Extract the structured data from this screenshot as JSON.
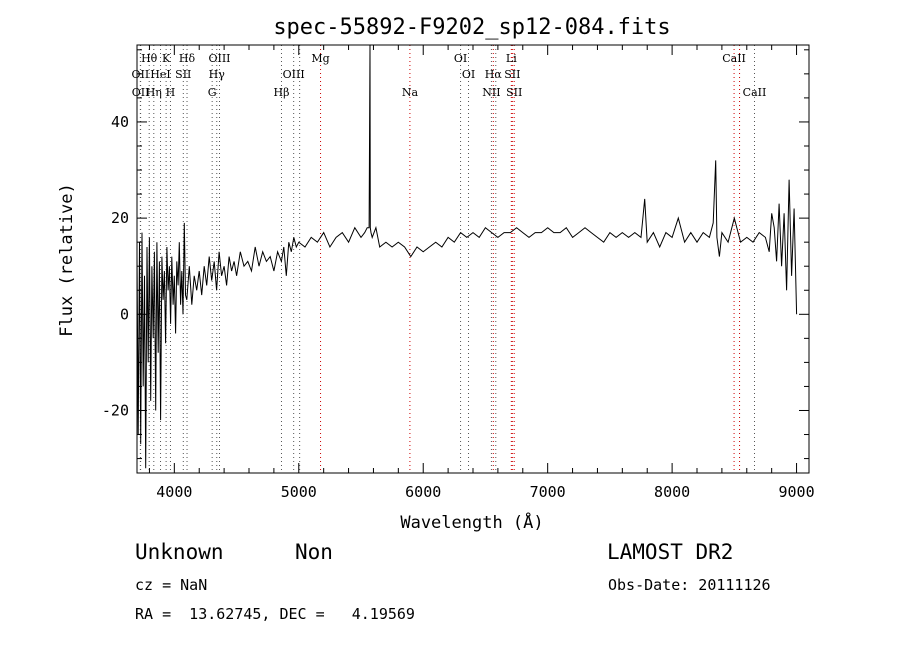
{
  "chart_data": {
    "type": "line",
    "title": "spec-55892-F9202_sp12-084.fits",
    "xlabel": "Wavelength (Å)",
    "ylabel": "Flux (relative)",
    "xlim": [
      3700,
      9100
    ],
    "ylim": [
      -33,
      56
    ],
    "xticks": [
      4000,
      5000,
      6000,
      7000,
      8000,
      9000
    ],
    "yticks": [
      -20,
      0,
      20,
      40
    ],
    "grid": false,
    "line_color": "#000000",
    "marker_color": "#cc0000",
    "series": [
      {
        "x": [
          3700,
          3710,
          3720,
          3730,
          3740,
          3750,
          3760,
          3770,
          3780,
          3790,
          3800,
          3810,
          3820,
          3830,
          3840,
          3850,
          3860,
          3870,
          3880,
          3890,
          3900,
          3910,
          3920,
          3930,
          3940,
          3950,
          3960,
          3970,
          3980,
          3990,
          4000,
          4010,
          4020,
          4030,
          4040,
          4050,
          4060,
          4070,
          4080,
          4090,
          4100,
          4120,
          4140,
          4160,
          4180,
          4200,
          4220,
          4240,
          4260,
          4280,
          4300,
          4320,
          4340,
          4360,
          4380,
          4400,
          4420,
          4440,
          4460,
          4480,
          4500,
          4530,
          4560,
          4590,
          4620,
          4650,
          4680,
          4710,
          4740,
          4770,
          4800,
          4830,
          4860,
          4880,
          4900,
          4920,
          4940,
          4960,
          4980,
          5000,
          5050,
          5100,
          5150,
          5200,
          5250,
          5300,
          5350,
          5400,
          5450,
          5500,
          5530,
          5550,
          5565,
          5572,
          5575,
          5580,
          5590,
          5620,
          5650,
          5700,
          5750,
          5800,
          5850,
          5900,
          5950,
          6000,
          6050,
          6100,
          6150,
          6200,
          6250,
          6300,
          6350,
          6400,
          6450,
          6500,
          6550,
          6600,
          6650,
          6700,
          6750,
          6800,
          6850,
          6900,
          6950,
          7000,
          7050,
          7100,
          7150,
          7200,
          7250,
          7300,
          7350,
          7400,
          7450,
          7500,
          7550,
          7600,
          7650,
          7700,
          7750,
          7780,
          7800,
          7850,
          7900,
          7950,
          8000,
          8050,
          8100,
          8150,
          8200,
          8250,
          8300,
          8330,
          8350,
          8360,
          8380,
          8400,
          8450,
          8500,
          8550,
          8600,
          8650,
          8700,
          8750,
          8780,
          8800,
          8820,
          8840,
          8860,
          8880,
          8900,
          8920,
          8940,
          8960,
          8980,
          9000
        ],
        "y": [
          12,
          -25,
          15,
          -27,
          17,
          -15,
          8,
          -32,
          14,
          -10,
          16,
          -18,
          10,
          -5,
          13,
          -20,
          15,
          -8,
          11,
          -22,
          12,
          3,
          9,
          -6,
          14,
          5,
          10,
          -2,
          12,
          2,
          8,
          -4,
          11,
          6,
          15,
          2,
          9,
          0,
          19,
          4,
          3,
          10,
          2,
          8,
          5,
          9,
          4,
          10,
          6,
          12,
          7,
          11,
          5,
          13,
          8,
          10,
          6,
          12,
          9,
          11,
          8,
          13,
          10,
          11,
          9,
          14,
          10,
          13,
          11,
          12,
          9,
          13,
          11,
          14,
          8,
          15,
          13,
          16,
          14,
          15,
          14,
          16,
          15,
          17,
          14,
          16,
          17,
          15,
          18,
          16,
          17,
          18,
          18,
          56,
          18,
          17,
          16,
          18,
          14,
          15,
          14,
          15,
          14,
          12,
          14,
          13,
          14,
          15,
          14,
          16,
          15,
          17,
          16,
          17,
          16,
          18,
          17,
          16,
          17,
          17,
          18,
          17,
          16,
          17,
          17,
          18,
          17,
          17,
          18,
          16,
          17,
          18,
          17,
          16,
          15,
          17,
          16,
          17,
          16,
          17,
          16,
          24,
          15,
          17,
          14,
          17,
          16,
          20,
          15,
          17,
          15,
          17,
          16,
          19,
          32,
          16,
          12,
          17,
          15,
          20,
          15,
          16,
          15,
          17,
          16,
          13,
          21,
          18,
          11,
          23,
          10,
          21,
          5,
          28,
          8,
          22,
          0
        ]
      }
    ],
    "line_markers": [
      {
        "x": 3727,
        "label": "OII",
        "row": 2,
        "color": "#555555"
      },
      {
        "x": 3729,
        "label": "OII",
        "row": 3,
        "color": "#555555"
      },
      {
        "x": 3798,
        "label": "Hθ",
        "row": 1,
        "color": "#555555"
      },
      {
        "x": 3835,
        "label": "Hη",
        "row": 3,
        "color": "#555555"
      },
      {
        "x": 3889,
        "label": "HeI",
        "row": 2,
        "color": "#555555"
      },
      {
        "x": 3934,
        "label": "K",
        "row": 1,
        "color": "#555555"
      },
      {
        "x": 3969,
        "label": "H",
        "row": 3,
        "color": "#555555"
      },
      {
        "x": 4072,
        "label": "SII",
        "row": 2,
        "color": "#555555"
      },
      {
        "x": 4102,
        "label": "Hδ",
        "row": 1,
        "color": "#555555"
      },
      {
        "x": 4304,
        "label": "G",
        "row": 3,
        "color": "#555555"
      },
      {
        "x": 4341,
        "label": "Hγ",
        "row": 2,
        "color": "#555555"
      },
      {
        "x": 4363,
        "label": "OIII",
        "row": 1,
        "color": "#555555"
      },
      {
        "x": 4861,
        "label": "Hβ",
        "row": 3,
        "color": "#555555"
      },
      {
        "x": 4959,
        "label": "OIII",
        "row": 2,
        "color": "#555555"
      },
      {
        "x": 5007,
        "label": "",
        "row": 2,
        "color": "#555555"
      },
      {
        "x": 5175,
        "label": "Mg",
        "row": 1,
        "color": "#cc0000"
      },
      {
        "x": 5893,
        "label": "Na",
        "row": 3,
        "color": "#cc0000"
      },
      {
        "x": 6300,
        "label": "OI",
        "row": 1,
        "color": "#555555"
      },
      {
        "x": 6364,
        "label": "OI",
        "row": 2,
        "color": "#555555"
      },
      {
        "x": 6548,
        "label": "NII",
        "row": 3,
        "color": "#555555"
      },
      {
        "x": 6563,
        "label": "Hα",
        "row": 2,
        "color": "#cc0000"
      },
      {
        "x": 6583,
        "label": "",
        "row": 3,
        "color": "#555555"
      },
      {
        "x": 6708,
        "label": "Li",
        "row": 1,
        "color": "#cc0000"
      },
      {
        "x": 6716,
        "label": "SII",
        "row": 2,
        "color": "#cc0000"
      },
      {
        "x": 6731,
        "label": "SII",
        "row": 3,
        "color": "#cc0000"
      },
      {
        "x": 8498,
        "label": "CaII",
        "row": 1,
        "color": "#cc0000"
      },
      {
        "x": 8542,
        "label": "",
        "row": 1,
        "color": "#cc0000"
      },
      {
        "x": 8662,
        "label": "CaII",
        "row": 3,
        "color": "#555555"
      }
    ]
  },
  "info": {
    "object_class": "Unknown",
    "object_subclass": "Non",
    "survey": "LAMOST DR2",
    "cz_text": "cz = NaN",
    "obs_date_text": "Obs-Date: 20111126",
    "radec_text": "RA =  13.62745, DEC =   4.19569"
  }
}
